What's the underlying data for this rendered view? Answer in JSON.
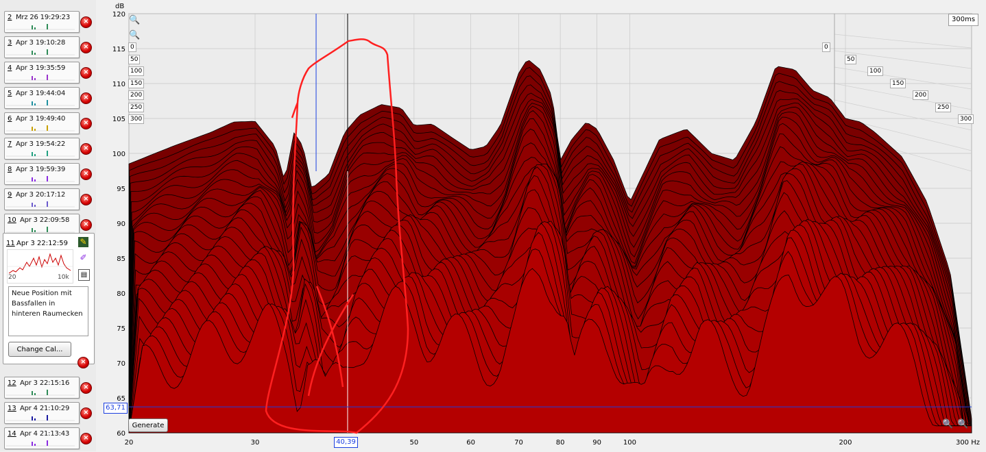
{
  "sidebar": {
    "measurements": [
      {
        "num": "2",
        "date": "Mrz 26 19:29:23",
        "color": "#2e8b57"
      },
      {
        "num": "3",
        "date": "Apr 3 19:10:28",
        "color": "#2e8b57"
      },
      {
        "num": "4",
        "date": "Apr 3 19:35:59",
        "color": "#9932cc"
      },
      {
        "num": "5",
        "date": "Apr 3 19:44:04",
        "color": "#1e90a0"
      },
      {
        "num": "6",
        "date": "Apr 3 19:49:40",
        "color": "#c8a000"
      },
      {
        "num": "7",
        "date": "Apr 3 19:54:22",
        "color": "#20a080"
      },
      {
        "num": "8",
        "date": "Apr 3 19:59:39",
        "color": "#8a2be2"
      },
      {
        "num": "9",
        "date": "Apr 3 20:17:12",
        "color": "#6a5acd"
      },
      {
        "num": "10",
        "date": "Apr 3 22:09:58",
        "color": "#2e8b57"
      }
    ],
    "active": {
      "num": "11",
      "date": "Apr 3 22:12:59",
      "thumb_min": "20",
      "thumb_max": "10k",
      "notes": "Neue Position mit Bassfallen in hinteren Raumecken",
      "change_cal_label": "Change Cal..."
    },
    "lower_measurements": [
      {
        "num": "12",
        "date": "Apr 3 22:15:16",
        "color": "#2e8b57"
      },
      {
        "num": "13",
        "date": "Apr 4 21:10:29",
        "color": "#1a1aa0"
      },
      {
        "num": "14",
        "date": "Apr 4 21:13:43",
        "color": "#8a2be2"
      }
    ],
    "icons": {
      "close": "close-icon",
      "edit": "edit-icon",
      "pen": "pen-icon",
      "notes": "notes-icon"
    }
  },
  "chart": {
    "y_unit": "dB",
    "x_unit": "Hz",
    "time_badge": "300ms",
    "generate_label": "Generate",
    "cursor_y": "63,71",
    "cursor_x": "40,39",
    "time_ticks": [
      "0",
      "50",
      "100",
      "150",
      "200",
      "250",
      "300"
    ]
  },
  "chart_data": {
    "type": "area",
    "title": "",
    "xlabel": "Hz",
    "ylabel": "dB",
    "x_scale": "log",
    "xlim": [
      20,
      300
    ],
    "ylim": [
      60,
      120
    ],
    "zlim_ms": [
      0,
      300
    ],
    "x_ticks": [
      "20",
      "30",
      "40",
      "50",
      "60",
      "70",
      "80",
      "90",
      "100",
      "200",
      "300 Hz"
    ],
    "x_tick_values": [
      20,
      30,
      40,
      50,
      60,
      70,
      80,
      90,
      100,
      200,
      300
    ],
    "y_ticks": [
      "60",
      "65",
      "70",
      "75",
      "80",
      "85",
      "90",
      "95",
      "100",
      "105",
      "110",
      "115",
      "120"
    ],
    "y_tick_values": [
      60,
      65,
      70,
      75,
      80,
      85,
      90,
      95,
      100,
      105,
      110,
      115,
      120
    ],
    "cursor": {
      "x": 40.39,
      "y": 63.71
    },
    "front_curve": {
      "x": [
        20,
        23,
        26,
        28,
        30,
        32,
        33,
        34,
        35,
        36,
        38,
        40,
        42,
        45,
        48,
        50,
        53,
        57,
        60,
        63,
        66,
        70,
        72,
        75,
        78,
        80,
        83,
        87,
        90,
        95,
        100,
        110,
        120,
        130,
        140,
        150,
        160,
        170,
        180,
        190,
        200,
        210,
        220,
        240,
        260,
        280,
        300
      ],
      "y": [
        98.5,
        101,
        103,
        104.5,
        104.6,
        101,
        96,
        103,
        101,
        95,
        97,
        103,
        105.5,
        107,
        106.5,
        104,
        104.2,
        102,
        100.5,
        101,
        104,
        111.5,
        113.5,
        112,
        108,
        99,
        102,
        104.5,
        103.5,
        99,
        93,
        102,
        103.5,
        100,
        99,
        104.5,
        112.5,
        112,
        109,
        108,
        105,
        104.5,
        103,
        99.5,
        93,
        83,
        62
      ]
    },
    "slice_count": 30
  }
}
